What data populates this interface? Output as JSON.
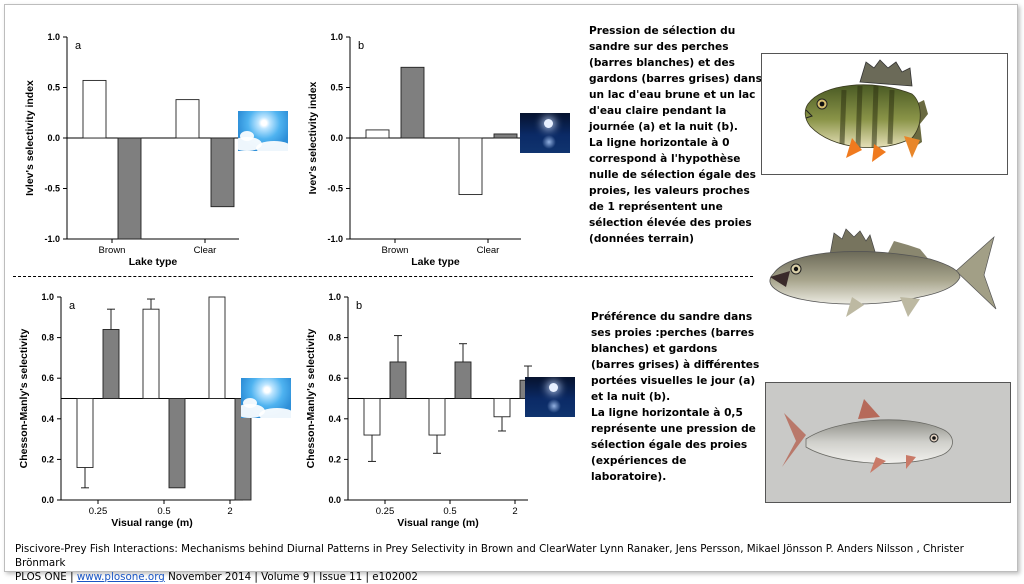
{
  "chart_data": [
    {
      "id": "top-a",
      "type": "bar",
      "panel_label": "a",
      "categories": [
        "Brown",
        "Clear"
      ],
      "series": [
        {
          "values": [
            0.57,
            0.38
          ]
        },
        {
          "values": [
            -1.0,
            -0.68
          ]
        }
      ],
      "ylim": [
        -1.0,
        1.0
      ],
      "yticks": [
        "1.0",
        "0.5",
        "0.0",
        "-0.5",
        "-1.0"
      ],
      "ylabel": "Ivlev's selectivity index",
      "xlabel": "Lake type",
      "baseline": 0
    },
    {
      "id": "top-b",
      "type": "bar",
      "panel_label": "b",
      "categories": [
        "Brown",
        "Clear"
      ],
      "series": [
        {
          "values": [
            0.08,
            -0.56
          ]
        },
        {
          "values": [
            0.7,
            0.04
          ]
        }
      ],
      "ylim": [
        -1.0,
        1.0
      ],
      "yticks": [
        "1.0",
        "0.5",
        "0.0",
        "-0.5",
        "-1.0"
      ],
      "ylabel": "Ivev's selectivity index",
      "xlabel": "Lake type",
      "baseline": 0
    },
    {
      "id": "bottom-a",
      "type": "bar",
      "panel_label": "a",
      "categories": [
        "0.25",
        "0.5",
        "2"
      ],
      "series": [
        {
          "values": [
            0.16,
            0.94,
            1.0
          ],
          "err": [
            0.1,
            0.05,
            0
          ]
        },
        {
          "values": [
            0.84,
            0.06,
            0.0
          ],
          "err": [
            0.1,
            0,
            0
          ]
        }
      ],
      "ylim": [
        0.0,
        1.0
      ],
      "yticks": [
        "1.0",
        "0.8",
        "0.6",
        "0.4",
        "0.2",
        "0.0"
      ],
      "ylabel": "Chesson-Manly's selectivity",
      "xlabel": "Visual range (m)",
      "baseline": 0.5
    },
    {
      "id": "bottom-b",
      "type": "bar",
      "panel_label": "b",
      "categories": [
        "0.25",
        "0.5",
        "2"
      ],
      "series": [
        {
          "values": [
            0.32,
            0.32,
            0.41
          ],
          "err": [
            0.13,
            0.09,
            0.07
          ]
        },
        {
          "values": [
            0.68,
            0.68,
            0.59
          ],
          "err": [
            0.13,
            0.09,
            0.07
          ]
        }
      ],
      "ylim": [
        0.0,
        1.0
      ],
      "yticks": [
        "1.0",
        "0.8",
        "0.6",
        "0.4",
        "0.2",
        "0.0"
      ],
      "ylabel": "Chesson-Manly's selectivity",
      "xlabel": "Visual range (m)",
      "baseline": 0.5
    }
  ],
  "colors": {
    "white_bar": "#ffffff",
    "grey_bar": "#7f7f7f",
    "link": "#1a55c4"
  },
  "description_top": [
    "Pression de sélection du",
    "sandre sur des perches",
    "(barres blanches) et des",
    "gardons (barres grises) dans",
    "un lac d'eau brune et un lac",
    "d'eau claire pendant la",
    "journée (a) et la nuit (b).",
    "La ligne horizontale à 0",
    "correspond à l'hypothèse",
    "nulle de sélection égale des",
    "proies, les valeurs proches",
    "de 1 représentent une",
    "sélection élevée des proies",
    "(données terrain)"
  ],
  "description_bottom": [
    "Préférence du sandre dans",
    "ses proies :perches (barres",
    "blanches) et gardons",
    "(barres grises) à différentes",
    "portées visuelles le jour (a)",
    "et la nuit (b).",
    "La ligne horizontale à  0,5",
    "représente une pression de",
    "sélection égale des proies",
    "(expériences de",
    "laboratoire)."
  ],
  "icons": [
    "sunny-sky-icon",
    "night-moon-icon",
    "perch-fish-image",
    "zander-fish-image",
    "roach-fish-image"
  ],
  "footer": {
    "line1": "Piscivore-Prey Fish Interactions: Mechanisms behind Diurnal Patterns in Prey Selectivity in Brown and ClearWater Lynn Ranaker, Jens Persson, Mikael Jönsson P. Anders Nilsson , Christer Brönmark",
    "journal": "PLOS ONE | ",
    "link": "www.plosone.org",
    "rest": " November 2014 | Volume 9 | Issue 11 | e102002"
  }
}
